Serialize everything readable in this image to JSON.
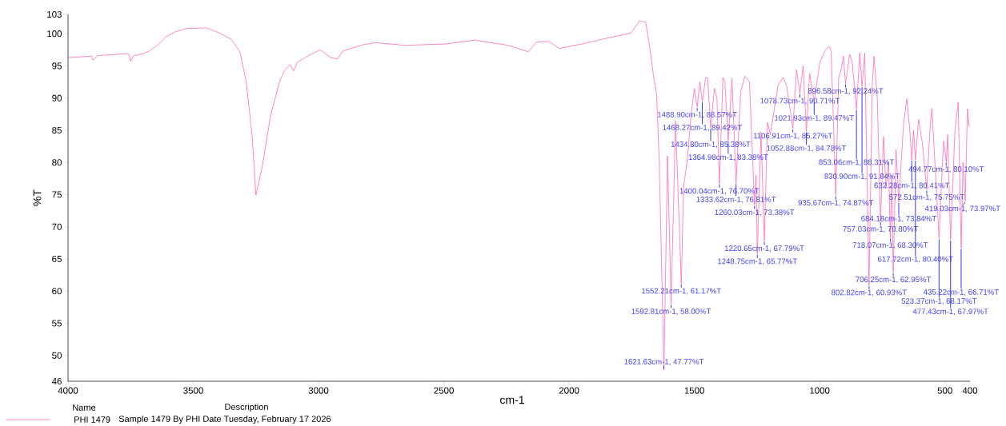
{
  "chart_data": {
    "type": "line",
    "xlabel": "cm-1",
    "ylabel": "%T",
    "xlim": [
      4000,
      400
    ],
    "ylim": [
      46,
      103
    ],
    "xticks": [
      4000,
      3500,
      3000,
      2500,
      2000,
      1500,
      1000,
      500,
      400
    ],
    "yticks": [
      46,
      50,
      55,
      60,
      65,
      70,
      75,
      80,
      85,
      90,
      95,
      100,
      103
    ],
    "grid": false,
    "marker": "none",
    "line_style": "solid",
    "legend": "bottom left",
    "legend_title": "Name",
    "series": [
      {
        "name": "PHI 1479",
        "color": "#ff69b4",
        "x": [
          4000,
          3950,
          3906,
          3901,
          3880,
          3800,
          3758,
          3750,
          3740,
          3700,
          3676,
          3640,
          3610,
          3570,
          3528,
          3446,
          3396,
          3347,
          3314,
          3289,
          3265,
          3250,
          3224,
          3191,
          3153,
          3133,
          3114,
          3100,
          3084,
          3035,
          2993,
          2952,
          2924,
          2903,
          2821,
          2771,
          2656,
          2492,
          2377,
          2245,
          2163,
          2130,
          2081,
          2039,
          1949,
          1850,
          1752,
          1719,
          1694,
          1678,
          1661,
          1651,
          1640,
          1621.63,
          1607,
          1592.81,
          1575,
          1552.21,
          1543,
          1528,
          1512,
          1500,
          1488.9,
          1478,
          1468.27,
          1455,
          1447,
          1434.8,
          1420,
          1410,
          1400.04,
          1386,
          1378,
          1364.98,
          1350,
          1333.62,
          1315,
          1298,
          1280,
          1260.03,
          1254,
          1248.75,
          1234,
          1220.65,
          1208,
          1197,
          1166,
          1145,
          1131,
          1106.91,
          1092.5,
          1078.73,
          1066,
          1052.88,
          1040,
          1021.93,
          999,
          977,
          961,
          954,
          935.67,
          924,
          917,
          905,
          896.58,
          880,
          870,
          853.06,
          840,
          830.9,
          820,
          802.82,
          790,
          783,
          770,
          757.03,
          745,
          735,
          725,
          718.07,
          712,
          706.25,
          695,
          684.18,
          665,
          652,
          640,
          632.28,
          625,
          617.72,
          605,
          590,
          572.51,
          560,
          552,
          540,
          523.37,
          510,
          505,
          494.77,
          489,
          477.43,
          460,
          447,
          435.22,
          428,
          419.03,
          410,
          403
        ],
        "values": [
          96.3,
          96.4,
          96.5,
          95.9,
          96.6,
          96.8,
          96.9,
          95.7,
          96.5,
          96.9,
          97.3,
          98.3,
          99.5,
          100.3,
          100.8,
          100.9,
          100.1,
          99.1,
          97.2,
          92.6,
          84.1,
          74.9,
          79.5,
          87.4,
          92.9,
          94.4,
          95.2,
          94.2,
          95.6,
          96.7,
          97.5,
          96.3,
          96.1,
          97.3,
          98.3,
          98.6,
          98.2,
          98.4,
          99.0,
          98.2,
          97.2,
          98.7,
          98.8,
          97.7,
          98.4,
          99.3,
          100.1,
          102.0,
          101.8,
          97.8,
          92.9,
          90.7,
          80,
          47.77,
          81,
          58.0,
          86.4,
          61.17,
          76.3,
          80.4,
          87.8,
          91.5,
          88.57,
          92.5,
          89.42,
          93.2,
          93.2,
          85.38,
          91.5,
          90,
          76.7,
          93.2,
          92.5,
          83.38,
          93.0,
          76.81,
          91,
          93.4,
          92.5,
          73.38,
          78,
          65.77,
          84.7,
          67.79,
          86.2,
          84.3,
          92,
          93.2,
          91.8,
          85.27,
          94.4,
          90.71,
          95,
          84.78,
          93.8,
          89.47,
          95.6,
          97.5,
          98,
          97.3,
          74.87,
          93.2,
          94,
          96.5,
          92.24,
          96.8,
          95.5,
          88.31,
          97,
          91.84,
          97,
          60.93,
          92,
          96.5,
          90,
          70.8,
          84,
          76,
          80,
          68.3,
          78,
          62.95,
          82,
          73.84,
          86,
          89.9,
          85,
          80.41,
          85,
          80.4,
          86.7,
          83,
          75.75,
          85,
          88.4,
          80,
          68.17,
          80,
          83.3,
          80.1,
          84.3,
          67.97,
          85,
          89.3,
          66.71,
          80,
          73.97,
          88.3,
          85.6
        ]
      }
    ],
    "annotations": [
      "Description",
      "Sample 1479 By PHI Date Tuesday, February 17 2026",
      {
        "text": "1621.63cm-1, 47.77%T",
        "x": 1621.63,
        "y": 47.77
      },
      {
        "text": "1592.81cm-1, 58.00%T",
        "x": 1592.81,
        "y": 58.0
      },
      {
        "text": "1552.21cm-1, 61.17%T",
        "x": 1552.21,
        "y": 61.17
      },
      {
        "text": "1488.90cm-1, 88.57%T",
        "x": 1488.9,
        "y": 88.57
      },
      {
        "text": "1468.27cm-1, 89.42%T",
        "x": 1468.27,
        "y": 89.42
      },
      {
        "text": "1434.80cm-1, 85.38%T",
        "x": 1434.8,
        "y": 85.38
      },
      {
        "text": "1400.04cm-1, 76.70%T",
        "x": 1400.04,
        "y": 76.7
      },
      {
        "text": "1364.98cm-1, 83.38%T",
        "x": 1364.98,
        "y": 83.38
      },
      {
        "text": "1333.62cm-1, 76.81%T",
        "x": 1333.62,
        "y": 76.81
      },
      {
        "text": "1260.03cm-1, 73.38%T",
        "x": 1260.03,
        "y": 73.38
      },
      {
        "text": "1248.75cm-1, 65.77%T",
        "x": 1248.75,
        "y": 65.77
      },
      {
        "text": "1220.65cm-1, 67.79%T",
        "x": 1220.65,
        "y": 67.79
      },
      {
        "text": "1106.91cm-1, 85.27%T",
        "x": 1106.91,
        "y": 85.27
      },
      {
        "text": "1078.73cm-1, 90.71%T",
        "x": 1078.73,
        "y": 90.71
      },
      {
        "text": "1052.88cm-1, 84.78%T",
        "x": 1052.88,
        "y": 84.78
      },
      {
        "text": "1021.93cm-1, 89.47%T",
        "x": 1021.93,
        "y": 89.47
      },
      {
        "text": "935.67cm-1, 74.87%T",
        "x": 935.67,
        "y": 74.87
      },
      {
        "text": "896.58cm-1, 92.24%T",
        "x": 896.58,
        "y": 92.24
      },
      {
        "text": "853.06cm-1, 88.31%T",
        "x": 853.06,
        "y": 88.31
      },
      {
        "text": "830.90cm-1, 91.84%T",
        "x": 830.9,
        "y": 91.84
      },
      {
        "text": "802.82cm-1, 60.93%T",
        "x": 802.82,
        "y": 60.93
      },
      {
        "text": "757.03cm-1, 70.80%T",
        "x": 757.03,
        "y": 70.8
      },
      {
        "text": "718.07cm-1, 68.30%T",
        "x": 718.07,
        "y": 68.3
      },
      {
        "text": "706.25cm-1, 62.95%T",
        "x": 706.25,
        "y": 62.95
      },
      {
        "text": "684.18cm-1, 73.84%T",
        "x": 684.18,
        "y": 73.84
      },
      {
        "text": "632.28cm-1, 80.41%T",
        "x": 632.28,
        "y": 80.41
      },
      {
        "text": "617.72cm-1, 80.40%T",
        "x": 617.72,
        "y": 80.4
      },
      {
        "text": "572.51cm-1, 75.75%T",
        "x": 572.51,
        "y": 75.75
      },
      {
        "text": "523.37cm-1, 68.17%T",
        "x": 523.37,
        "y": 68.17
      },
      {
        "text": "494.77cm-1, 80.10%T",
        "x": 494.77,
        "y": 80.1
      },
      {
        "text": "477.43cm-1, 67.97%T",
        "x": 477.43,
        "y": 67.97
      },
      {
        "text": "435.22cm-1, 66.71%T",
        "x": 435.22,
        "y": 66.71
      },
      {
        "text": "419.03cm-1, 73.97%T",
        "x": 419.03,
        "y": 73.97
      }
    ]
  }
}
